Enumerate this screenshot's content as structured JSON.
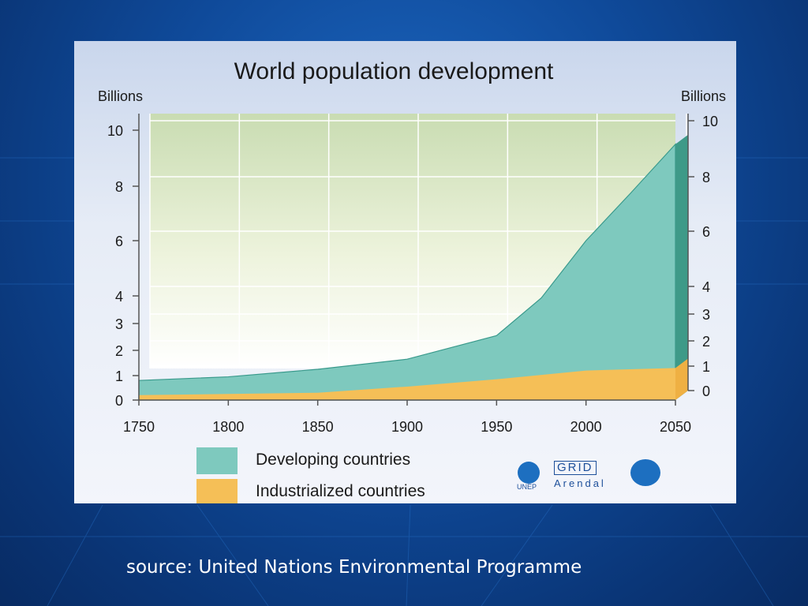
{
  "slide": {
    "source_text": "source: United Nations Environmental Programme",
    "colors": {
      "background": "#0f4a9a",
      "text": "#ffffff"
    }
  },
  "chart_data": {
    "type": "area",
    "title": "World population development",
    "ylabel_left": "Billions",
    "ylabel_right": "Billions",
    "xlabel": "",
    "x": [
      1750,
      1800,
      1850,
      1900,
      1950,
      2000,
      2050
    ],
    "xlim": [
      1750,
      2050
    ],
    "ylim": [
      0,
      10
    ],
    "y_ticks_left": [
      0,
      1,
      2,
      3,
      4,
      6,
      8,
      10
    ],
    "y_ticks_right": [
      0,
      1,
      2,
      3,
      4,
      6,
      8,
      10
    ],
    "x_tick_labels": [
      "1750",
      "1800",
      "1850",
      "1900",
      "1950",
      "2000",
      "2050"
    ],
    "stacked": true,
    "grid": true,
    "series": [
      {
        "name": "Industrialized countries",
        "color": "#f5bf57",
        "points": [
          [
            1750,
            0.2
          ],
          [
            1800,
            0.25
          ],
          [
            1850,
            0.3
          ],
          [
            1900,
            0.55
          ],
          [
            1950,
            0.85
          ],
          [
            2000,
            1.2
          ],
          [
            2050,
            1.3
          ]
        ]
      },
      {
        "name": "Developing countries",
        "color": "#7ec9be",
        "points": [
          [
            1750,
            0.6
          ],
          [
            1800,
            0.7
          ],
          [
            1850,
            0.95
          ],
          [
            1900,
            1.1
          ],
          [
            1950,
            1.7
          ],
          [
            1975,
            2.9
          ],
          [
            2000,
            4.8
          ],
          [
            2025,
            6.5
          ],
          [
            2050,
            8.2
          ]
        ]
      }
    ],
    "legend": [
      {
        "label": "Developing countries",
        "color": "#7ec9be"
      },
      {
        "label": "Industrialized countries",
        "color": "#f5bf57"
      }
    ],
    "logos": {
      "unep": "UNEP",
      "grid": "GRID",
      "arendal": "Arendal"
    }
  }
}
